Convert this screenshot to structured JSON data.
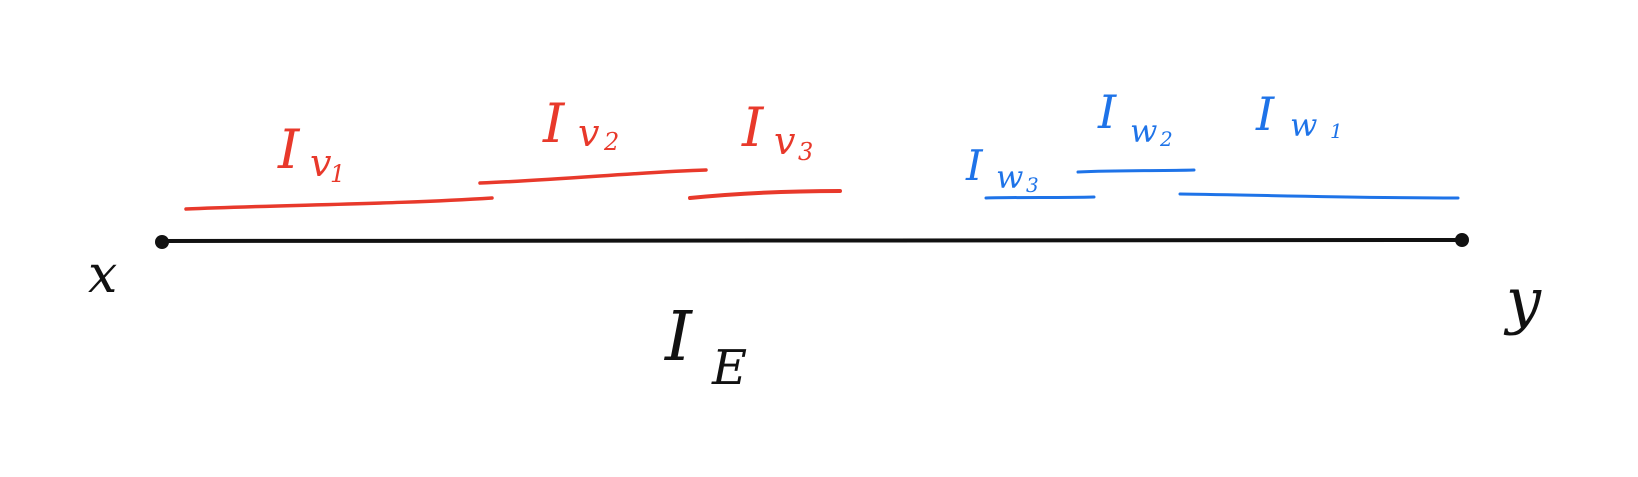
{
  "diagram": {
    "main_interval": {
      "label_main": "I",
      "label_sub": "E",
      "left_endpoint": "x",
      "right_endpoint": "y"
    },
    "red_intervals": [
      {
        "label_main": "I",
        "label_sub": "v",
        "label_index": "1"
      },
      {
        "label_main": "I",
        "label_sub": "v",
        "label_index": "2"
      },
      {
        "label_main": "I",
        "label_sub": "v",
        "label_index": "3"
      }
    ],
    "blue_intervals": [
      {
        "label_main": "I",
        "label_sub": "w",
        "label_index": "3"
      },
      {
        "label_main": "I",
        "label_sub": "w",
        "label_index": "2"
      },
      {
        "label_main": "I",
        "label_sub": "w",
        "label_index": "1"
      }
    ],
    "colors": {
      "main": "#111111",
      "red": "#e8392b",
      "blue": "#1e73e8"
    }
  }
}
